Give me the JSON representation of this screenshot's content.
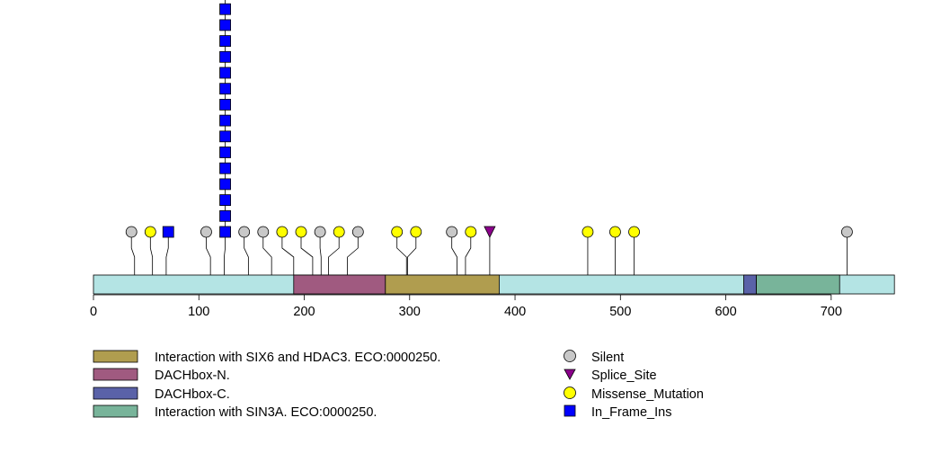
{
  "chart_data": {
    "type": "lollipop",
    "protein_length": 760,
    "x_ticks": [
      0,
      100,
      200,
      300,
      400,
      500,
      600,
      700
    ],
    "domains": [
      {
        "name": "DACHbox-N.",
        "start": 190,
        "end": 277,
        "color": "#A05A80"
      },
      {
        "name": "Interaction with SIX6 and HDAC3. ECO:0000250.",
        "start": 277,
        "end": 385,
        "color": "#B09D4F"
      },
      {
        "name": "DACHbox-C.",
        "start": 617,
        "end": 629,
        "color": "#5A62A8"
      },
      {
        "name": "Interaction with SIN3A. ECO:0000250.",
        "start": 629,
        "end": 708,
        "color": "#78B49A"
      }
    ],
    "mutations": [
      {
        "pos": 39,
        "label_pos": 36,
        "type": "Silent",
        "count": 1
      },
      {
        "pos": 56,
        "label_pos": 54,
        "type": "Missense_Mutation",
        "count": 1
      },
      {
        "pos": 69,
        "label_pos": 71,
        "type": "In_Frame_Ins",
        "count": 1
      },
      {
        "pos": 111,
        "label_pos": 107,
        "type": "Silent",
        "count": 1
      },
      {
        "pos": 124,
        "label_pos": 125,
        "type": "In_Frame_Ins",
        "count": 16
      },
      {
        "pos": 147,
        "label_pos": 143,
        "type": "Silent",
        "count": 1
      },
      {
        "pos": 169,
        "label_pos": 161,
        "type": "Silent",
        "count": 1
      },
      {
        "pos": 190,
        "label_pos": 179,
        "type": "Missense_Mutation",
        "count": 1
      },
      {
        "pos": 208,
        "label_pos": 197,
        "type": "Missense_Mutation",
        "count": 1
      },
      {
        "pos": 216,
        "label_pos": 215,
        "type": "Silent",
        "count": 1
      },
      {
        "pos": 223,
        "label_pos": 233,
        "type": "Missense_Mutation",
        "count": 1
      },
      {
        "pos": 241,
        "label_pos": 251,
        "type": "Silent",
        "count": 1
      },
      {
        "pos": 297,
        "label_pos": 288,
        "type": "Missense_Mutation",
        "count": 1
      },
      {
        "pos": 298,
        "label_pos": 306,
        "type": "Missense_Mutation",
        "count": 1
      },
      {
        "pos": 345,
        "label_pos": 340,
        "type": "Silent",
        "count": 1
      },
      {
        "pos": 353,
        "label_pos": 358,
        "type": "Missense_Mutation",
        "count": 1
      },
      {
        "pos": 376,
        "label_pos": 376,
        "type": "Splice_Site",
        "count": 1
      },
      {
        "pos": 469,
        "label_pos": 469,
        "type": "Missense_Mutation",
        "count": 1
      },
      {
        "pos": 495,
        "label_pos": 495,
        "type": "Missense_Mutation",
        "count": 1
      },
      {
        "pos": 513,
        "label_pos": 513,
        "type": "Missense_Mutation",
        "count": 1
      },
      {
        "pos": 715,
        "label_pos": 715,
        "type": "Silent",
        "count": 1
      }
    ],
    "mutation_types": [
      {
        "name": "Silent",
        "shape": "circle",
        "color": "#C8C8C8"
      },
      {
        "name": "Splice_Site",
        "shape": "triangle",
        "color": "#8B008B"
      },
      {
        "name": "Missense_Mutation",
        "shape": "circle",
        "color": "#FFFF00"
      },
      {
        "name": "In_Frame_Ins",
        "shape": "square",
        "color": "#0000FF"
      }
    ],
    "protein_color": "#B4E4E4"
  },
  "legend": {
    "domains": [
      "Interaction with SIX6 and HDAC3. ECO:0000250.",
      "DACHbox-N.",
      "DACHbox-C.",
      "Interaction with SIN3A. ECO:0000250."
    ],
    "mutations": [
      "Silent",
      "Splice_Site",
      "Missense_Mutation",
      "In_Frame_Ins"
    ]
  }
}
